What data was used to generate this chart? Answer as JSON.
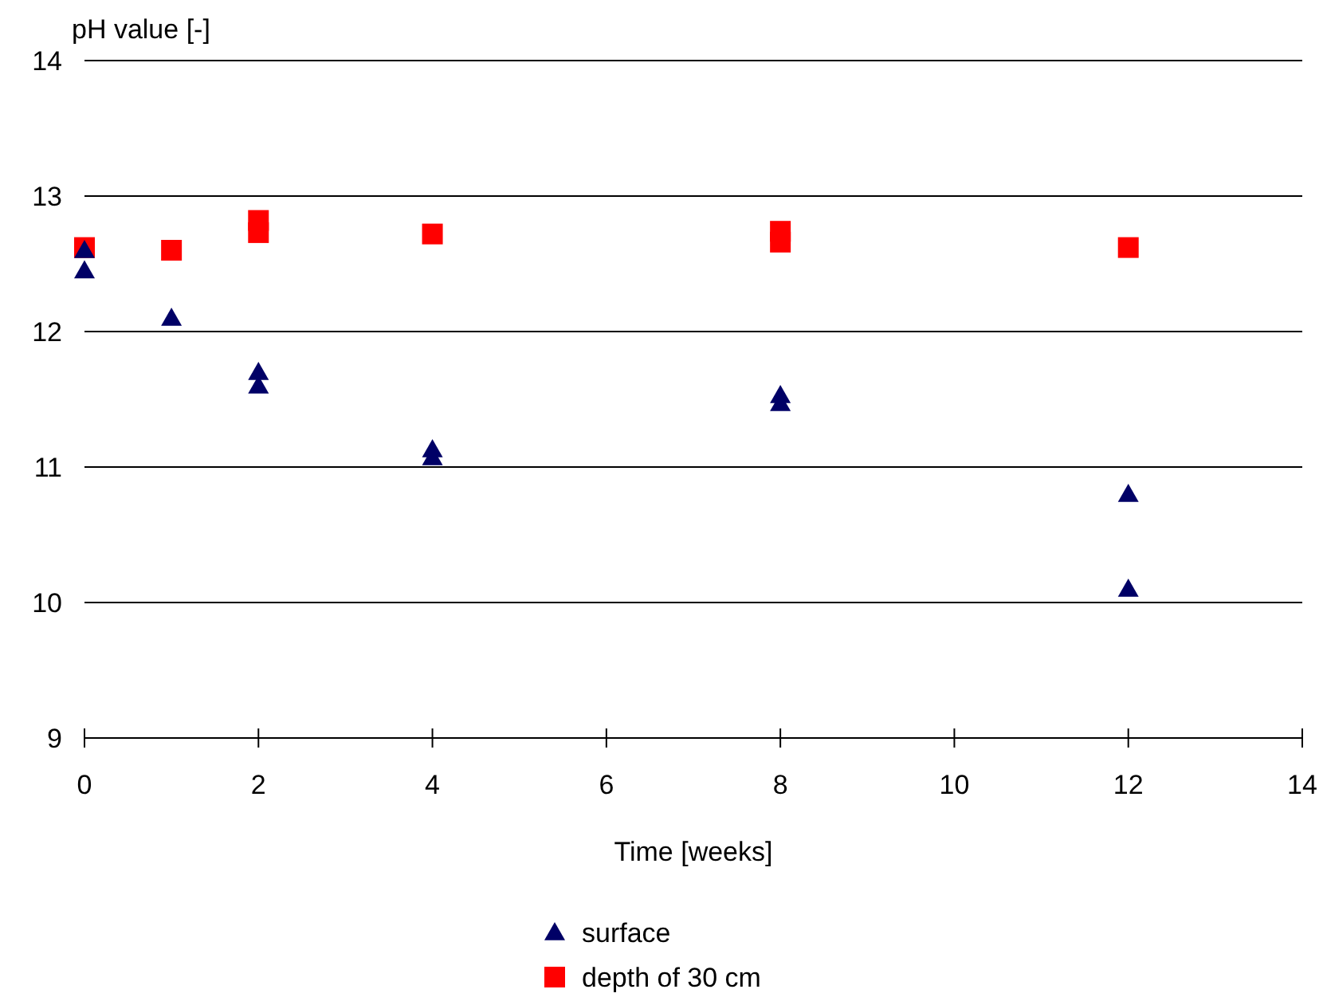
{
  "chart_data": {
    "type": "scatter",
    "xlabel": "Time [weeks]",
    "ylabel": "pH value [-]",
    "xlim": [
      0,
      14
    ],
    "xticks": [
      0,
      2,
      4,
      6,
      8,
      10,
      12,
      14
    ],
    "ylim": [
      9,
      14
    ],
    "yticks": [
      9,
      10,
      11,
      12,
      13,
      14
    ],
    "grid": "y",
    "legend": "bottom",
    "series": [
      {
        "name": "surface",
        "color": "#000066",
        "marker": "triangle",
        "x": [
          0,
          0,
          1,
          2,
          2,
          4,
          4,
          8,
          8,
          12,
          12
        ],
        "values": [
          12.6,
          12.45,
          12.1,
          11.7,
          11.6,
          11.13,
          11.07,
          11.53,
          11.47,
          10.8,
          10.1
        ]
      },
      {
        "name": "depth of 30 cm",
        "color": "#ff0000",
        "marker": "square",
        "x": [
          0,
          1,
          2,
          2,
          4,
          8,
          8,
          12
        ],
        "values": [
          12.62,
          12.6,
          12.82,
          12.73,
          12.72,
          12.74,
          12.66,
          12.62
        ]
      }
    ]
  }
}
